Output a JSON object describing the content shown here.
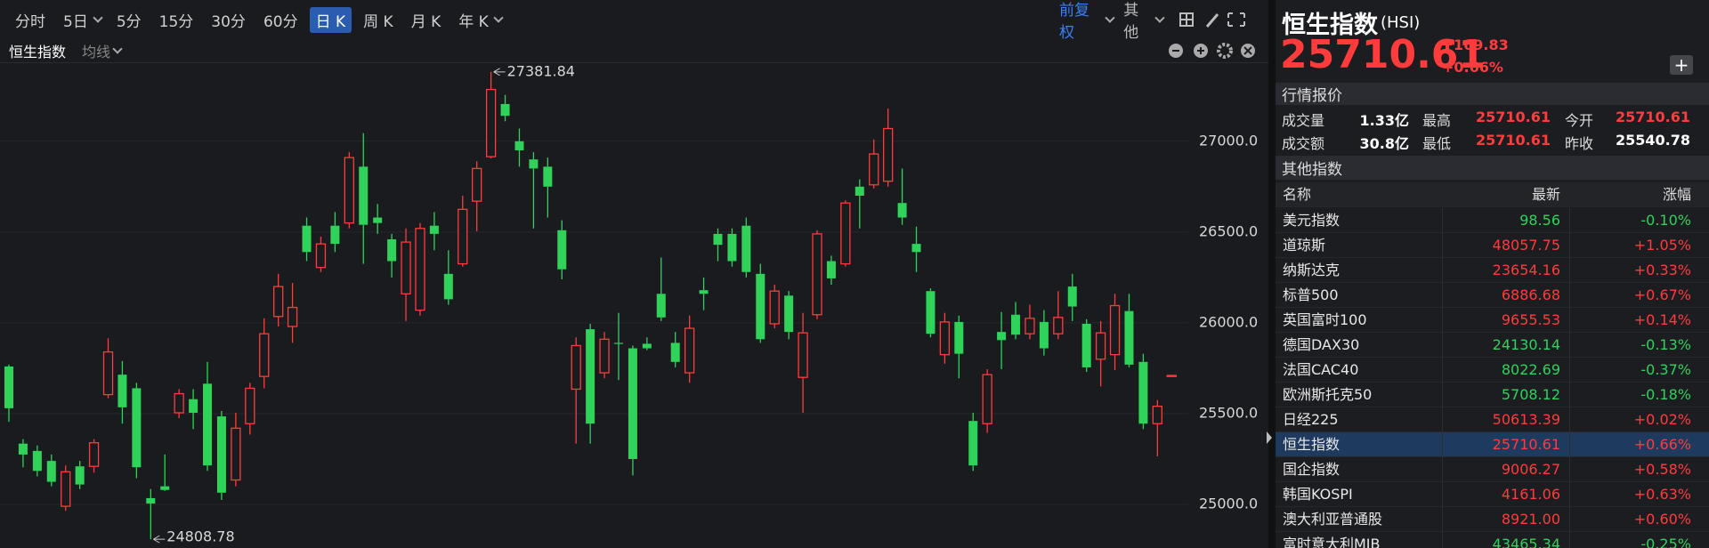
{
  "toolbar": {
    "periods": [
      "分时",
      "5日",
      "5分",
      "15分",
      "30分",
      "60分",
      "日 K",
      "周 K",
      "月 K",
      "年 K"
    ],
    "adjust": "前复权",
    "other": "其他"
  },
  "subheader": {
    "ma": "均线"
  },
  "chart_data": {
    "type": "candlestick",
    "title": "恒生指数",
    "open": [
      25760,
      25335,
      25295,
      25240,
      24990,
      25210,
      25210,
      25605,
      25715,
      25640,
      25035,
      25100,
      25505,
      25580,
      25665,
      25485,
      25135,
      25445,
      25705,
      26035,
      25980,
      26535,
      26305,
      26535,
      26550,
      26860,
      26580,
      26460,
      26160,
      26070,
      26535,
      26270,
      26325,
      26670,
      26915,
      27205,
      27000,
      26900,
      26860,
      26510,
      25635,
      25965,
      25725,
      25890,
      25860,
      25885,
      26160,
      25890,
      25725,
      26180,
      26490,
      26490,
      26535,
      26270,
      25995,
      26150,
      25700,
      26045,
      26340,
      26325,
      26750,
      26760,
      26780,
      26660,
      26435,
      26175,
      25825,
      26005,
      25460,
      25445,
      25950,
      26045,
      25940,
      26005,
      25940,
      26200,
      25995,
      25800,
      25825,
      26065,
      25785,
      25445,
      25710.61
    ],
    "high": [
      25770,
      25360,
      25325,
      25275,
      25215,
      25240,
      25360,
      25915,
      25790,
      25670,
      25085,
      25275,
      25635,
      25635,
      25785,
      25515,
      25505,
      25670,
      26025,
      26270,
      26220,
      26580,
      26475,
      26610,
      26940,
      27045,
      26655,
      26490,
      26520,
      26550,
      26610,
      26400,
      26700,
      26890,
      27381.84,
      27255,
      27070,
      26940,
      26910,
      26565,
      25920,
      25995,
      25950,
      26055,
      25875,
      25920,
      26360,
      25950,
      26040,
      26250,
      26520,
      26520,
      26580,
      26325,
      26210,
      26175,
      26055,
      26510,
      26370,
      26675,
      26790,
      27010,
      27180,
      26850,
      26530,
      26190,
      26055,
      26040,
      25505,
      25745,
      26060,
      26115,
      26100,
      26070,
      26175,
      26270,
      26020,
      26010,
      26160,
      26160,
      25830,
      25575,
      25710.61
    ],
    "low": [
      25455,
      25205,
      25155,
      25100,
      24965,
      25085,
      25175,
      25585,
      25445,
      25145,
      24808.78,
      25075,
      25475,
      25415,
      25185,
      25025,
      25100,
      25385,
      25640,
      25980,
      25890,
      26340,
      26280,
      26390,
      26520,
      26325,
      26490,
      26250,
      26010,
      26040,
      26400,
      26100,
      26310,
      26505,
      26905,
      27110,
      26860,
      26520,
      26580,
      26240,
      25335,
      25335,
      25695,
      25685,
      25160,
      25850,
      26010,
      25755,
      25670,
      26070,
      26340,
      26310,
      26250,
      25890,
      25970,
      25910,
      25505,
      26020,
      26210,
      26310,
      26520,
      26740,
      26750,
      26540,
      26280,
      25920,
      25775,
      25695,
      25185,
      25395,
      25745,
      25910,
      25910,
      25820,
      25910,
      26010,
      25730,
      25650,
      25740,
      25755,
      25415,
      25265,
      25710.61
    ],
    "close": [
      25530,
      25275,
      25185,
      25125,
      25180,
      25110,
      25340,
      25840,
      25535,
      25205,
      25005,
      25080,
      25610,
      25505,
      25215,
      25065,
      25420,
      25640,
      25940,
      26200,
      26085,
      26390,
      26435,
      26435,
      26910,
      26540,
      26550,
      26340,
      26445,
      26520,
      26490,
      26130,
      26625,
      26850,
      27285,
      27140,
      26950,
      26850,
      26750,
      26295,
      25875,
      25445,
      25910,
      25885,
      25250,
      25860,
      26030,
      25785,
      25970,
      26160,
      26430,
      26340,
      26280,
      25910,
      26175,
      25950,
      25945,
      26490,
      26245,
      26660,
      26700,
      26930,
      27070,
      26580,
      26390,
      25940,
      26005,
      25830,
      25215,
      25715,
      25905,
      25935,
      26025,
      25860,
      26030,
      26090,
      25755,
      25945,
      26095,
      25770,
      25445,
      25540.78,
      25710.61
    ],
    "up_color": "#ff3b3b",
    "down_color": "#2fd35a",
    "ylim": [
      24780,
      27430
    ],
    "yticks": [
      {
        "value": 25000,
        "label": "25000.0"
      },
      {
        "value": 25500,
        "label": "25500.0"
      },
      {
        "value": 26000,
        "label": "26000.0"
      },
      {
        "value": 26500,
        "label": "26500.0"
      },
      {
        "value": 27000,
        "label": "27000.0"
      }
    ],
    "grid": true
  },
  "panel": {
    "title": "恒生指数",
    "code": "(HSI)",
    "price": "25710.61",
    "change": "169.83",
    "change_pct": "+0.66%",
    "quote_title": "行情报价",
    "quote": [
      [
        "成交量",
        "1.33亿",
        "最高",
        "25710.61",
        "今开",
        "25710.61"
      ],
      [
        "成交额",
        "30.8亿",
        "最低",
        "25710.61",
        "昨收",
        "25540.78"
      ]
    ],
    "others_title": "其他指数",
    "columns": [
      "名称",
      "最新",
      "涨幅"
    ],
    "rows": [
      [
        "美元指数",
        "98.56",
        "-0.10%"
      ],
      [
        "道琼斯",
        "48057.75",
        "+1.05%"
      ],
      [
        "纳斯达克",
        "23654.16",
        "+0.33%"
      ],
      [
        "标普500",
        "6886.68",
        "+0.67%"
      ],
      [
        "英国富时100",
        "9655.53",
        "+0.14%"
      ],
      [
        "德国DAX30",
        "24130.14",
        "-0.13%"
      ],
      [
        "法国CAC40",
        "8022.69",
        "-0.37%"
      ],
      [
        "欧洲斯托克50",
        "5708.12",
        "-0.18%"
      ],
      [
        "日经225",
        "50613.39",
        "+0.02%"
      ],
      [
        "恒生指数",
        "25710.61",
        "+0.66%"
      ],
      [
        "国企指数",
        "9006.27",
        "+0.58%"
      ],
      [
        "韩国KOSPI",
        "4161.06",
        "+0.63%"
      ],
      [
        "澳大利亚普通股",
        "8921.00",
        "+0.60%"
      ],
      [
        "富时意大利MIB",
        "43465.34",
        "-0.25%"
      ]
    ],
    "highlight_row": 9
  }
}
